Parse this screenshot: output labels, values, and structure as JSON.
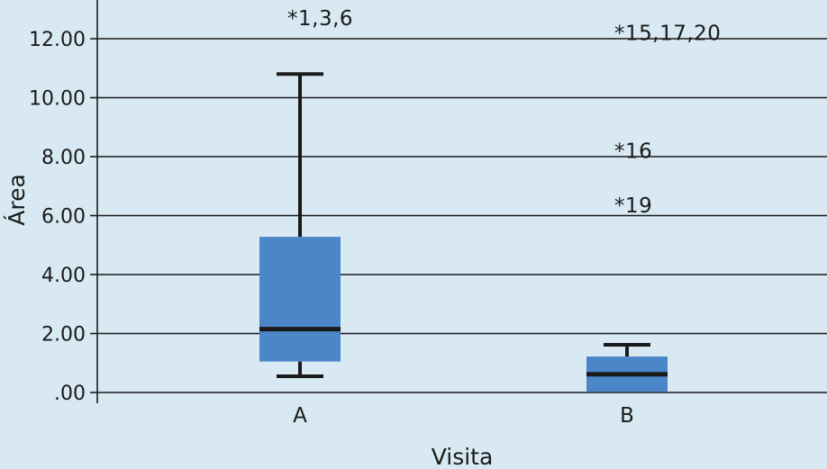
{
  "chart_data": {
    "type": "boxplot",
    "title": "",
    "xlabel": "Visita",
    "ylabel": "Área",
    "ylim": [
      0,
      12.5
    ],
    "grid": true,
    "y_ticks": [
      0,
      2,
      4,
      6,
      8,
      10,
      12
    ],
    "y_tick_labels": [
      ".00",
      "2.00",
      "4.00",
      "6.00",
      "8.00",
      "10.00",
      "12.00"
    ],
    "categories": [
      "A",
      "B"
    ],
    "boxes": [
      {
        "category": "A",
        "whisker_low": 0.55,
        "q1": 1.05,
        "median": 2.15,
        "q3": 5.28,
        "whisker_high": 10.8
      },
      {
        "category": "B",
        "whisker_low": 0.02,
        "q1": 0.02,
        "median": 0.62,
        "q3": 1.22,
        "whisker_high": 1.62
      }
    ],
    "outliers": [
      {
        "category": "A",
        "label": "*1,3,6",
        "y": 12.7
      },
      {
        "category": "B",
        "label": "*15,17,20",
        "y": 12.2
      },
      {
        "category": "B",
        "label": "*16",
        "y": 8.2
      },
      {
        "category": "B",
        "label": "*19",
        "y": 6.35
      }
    ],
    "colors": {
      "background": "#d8e9f3",
      "box_fill": "#4b87c8",
      "line": "#1a1a1a"
    }
  }
}
